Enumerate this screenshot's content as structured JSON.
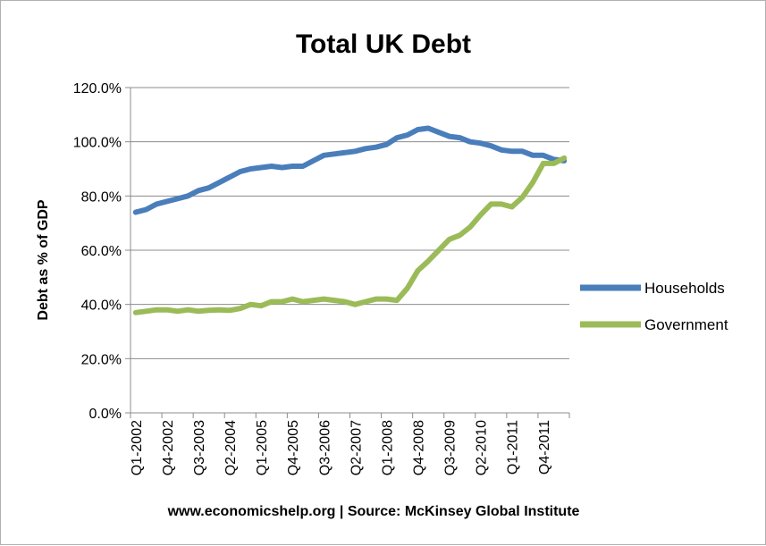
{
  "chart_data": {
    "type": "line",
    "title": "Total UK Debt",
    "ylabel": "Debt as % of GDP",
    "xlabel": "",
    "ylim": [
      0,
      120
    ],
    "yticks": [
      "0.0%",
      "20.0%",
      "40.0%",
      "60.0%",
      "80.0%",
      "100.0%",
      "120.0%"
    ],
    "grid": true,
    "legend_position": "right",
    "x": [
      "Q1-2002",
      "Q2-2002",
      "Q3-2002",
      "Q4-2002",
      "Q1-2003",
      "Q2-2003",
      "Q3-2003",
      "Q4-2003",
      "Q1-2004",
      "Q2-2004",
      "Q3-2004",
      "Q4-2004",
      "Q1-2005",
      "Q2-2005",
      "Q3-2005",
      "Q4-2005",
      "Q1-2006",
      "Q2-2006",
      "Q3-2006",
      "Q4-2006",
      "Q1-2007",
      "Q2-2007",
      "Q3-2007",
      "Q4-2007",
      "Q1-2008",
      "Q2-2008",
      "Q3-2008",
      "Q4-2008",
      "Q1-2009",
      "Q2-2009",
      "Q3-2009",
      "Q4-2009",
      "Q1-2010",
      "Q2-2010",
      "Q3-2010",
      "Q4-2010",
      "Q1-2011",
      "Q2-2011",
      "Q3-2011",
      "Q4-2011",
      "Q1-2012",
      "Q2-2012"
    ],
    "x_tick_labels": [
      "Q1-2002",
      "Q4-2002",
      "Q3-2003",
      "Q2-2004",
      "Q1-2005",
      "Q4-2005",
      "Q3-2006",
      "Q2-2007",
      "Q1-2008",
      "Q4-2008",
      "Q3-2009",
      "Q2-2010",
      "Q1-2011",
      "Q4-2011"
    ],
    "series": [
      {
        "name": "Households",
        "color": "#4a7ebb",
        "values": [
          74,
          75,
          77,
          78,
          79,
          80,
          82,
          83,
          85,
          87,
          89,
          90,
          90.5,
          91,
          90.5,
          91,
          91,
          93,
          95,
          95.5,
          96,
          96.5,
          97.5,
          98,
          99,
          101.5,
          102.5,
          104.5,
          105,
          103.5,
          102,
          101.5,
          100,
          99.5,
          98.5,
          97,
          96.5,
          96.5,
          95,
          95,
          93.5,
          93
        ]
      },
      {
        "name": "Government",
        "color": "#9bbb59",
        "values": [
          37,
          37.5,
          38,
          38,
          37.5,
          38,
          37.5,
          37.8,
          38,
          37.8,
          38.5,
          40,
          39.5,
          41,
          41,
          42,
          41,
          41.5,
          42,
          41.5,
          41,
          40,
          41,
          42,
          42,
          41.5,
          46,
          52.5,
          56,
          60,
          64,
          65.5,
          68.5,
          73,
          77,
          77,
          76,
          79.5,
          85,
          92,
          92,
          94
        ]
      }
    ]
  },
  "footer": {
    "source_text": "www.economicshelp.org | Source: McKinsey Global Institute"
  }
}
